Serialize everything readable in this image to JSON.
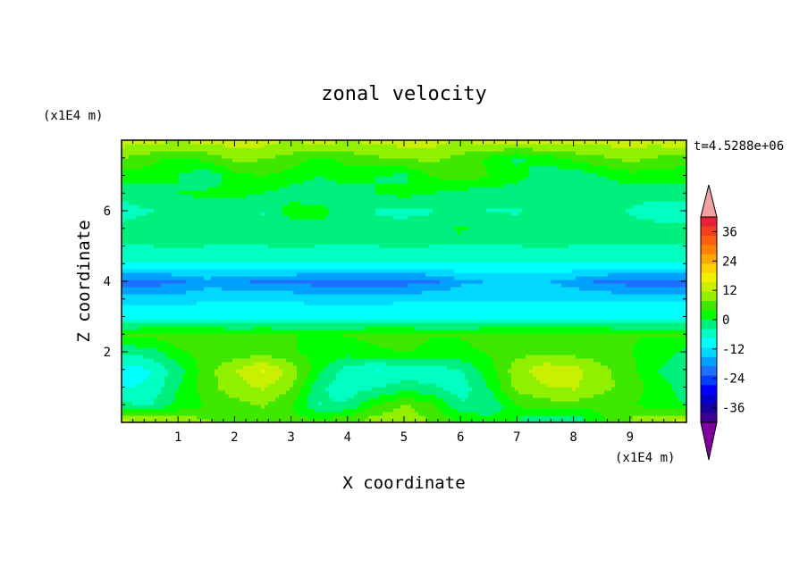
{
  "chart_data": {
    "type": "heatmap",
    "title": "zonal velocity",
    "xlabel": "X coordinate",
    "ylabel": "Z coordinate",
    "x_unit": "(x1E4 m)",
    "y_unit": "(x1E4 m)",
    "time_label": "t=4.5288e+06",
    "xlim": [
      0,
      10
    ],
    "ylim": [
      0,
      8
    ],
    "x_ticks": [
      1,
      2,
      3,
      4,
      5,
      6,
      7,
      8,
      9
    ],
    "y_ticks": [
      2,
      4,
      6
    ],
    "colorbar": {
      "ticks": [
        36,
        24,
        12,
        0,
        -12,
        -24,
        -36
      ],
      "colors": [
        "#e8203a",
        "#f04020",
        "#f86010",
        "#ff8000",
        "#ffa800",
        "#ffd000",
        "#f0f000",
        "#c8f000",
        "#90f000",
        "#40e800",
        "#00ff00",
        "#00f080",
        "#00ffc0",
        "#00ffff",
        "#00d8ff",
        "#00a0ff",
        "#2070ff",
        "#0040ff",
        "#0000ff",
        "#0000c8",
        "#1800a0",
        "#400090"
      ],
      "over_color": "#f4a0a0",
      "under_color": "#8000a0"
    },
    "field": {
      "x": [
        0.0,
        0.5,
        1.0,
        1.5,
        2.0,
        2.5,
        3.0,
        3.5,
        4.0,
        4.5,
        5.0,
        5.5,
        6.0,
        6.5,
        7.0,
        7.5,
        8.0,
        8.5,
        9.0,
        9.5,
        10.0
      ],
      "z": [
        0.1,
        0.5,
        1.0,
        1.5,
        2.0,
        2.5,
        3.0,
        3.5,
        4.0,
        4.5,
        5.0,
        5.5,
        6.0,
        6.5,
        7.0,
        7.5,
        7.9
      ],
      "values": [
        [
          12,
          10,
          9,
          8,
          6,
          6,
          5,
          4,
          6,
          9,
          10,
          7,
          3,
          2,
          0,
          -3,
          -3,
          3,
          8,
          11,
          12
        ],
        [
          -3,
          -4,
          1,
          4,
          6,
          8,
          4,
          -4,
          -3,
          4,
          8,
          5,
          -3,
          -4,
          4,
          6,
          6,
          5,
          4,
          2,
          0
        ],
        [
          -8,
          -7,
          0,
          6,
          10,
          12,
          8,
          -3,
          -6,
          -4,
          -2,
          -3,
          -6,
          0,
          9,
          11,
          12,
          9,
          6,
          2,
          -2
        ],
        [
          -10,
          -8,
          -2,
          6,
          11,
          16,
          10,
          1,
          -6,
          -8,
          -7,
          -6,
          -4,
          2,
          10,
          14,
          13,
          9,
          5,
          0,
          -4
        ],
        [
          -3,
          -2,
          3,
          5,
          5,
          6,
          4,
          3,
          2,
          3,
          4,
          3,
          3,
          4,
          6,
          7,
          6,
          5,
          4,
          2,
          -1
        ],
        [
          4,
          5,
          6,
          6,
          4,
          5,
          4,
          3,
          4,
          5,
          5,
          4,
          4,
          5,
          6,
          6,
          6,
          5,
          4,
          4,
          4
        ],
        [
          -8,
          -8,
          -8,
          -8,
          -8,
          -8,
          -8,
          -8,
          -8,
          -8,
          -8,
          -8,
          -8,
          -8,
          -8,
          -8,
          -8,
          -8,
          -8,
          -8,
          -8
        ],
        [
          -13,
          -13,
          -13,
          -12,
          -12,
          -12,
          -12,
          -13,
          -13,
          -13,
          -12,
          -12,
          -12,
          -12,
          -12,
          -12,
          -12,
          -12,
          -12,
          -12,
          -12
        ],
        [
          -21,
          -21,
          -20,
          -17,
          -18,
          -20,
          -20,
          -21,
          -21,
          -21,
          -21,
          -20,
          -16,
          -15,
          -15,
          -15,
          -17,
          -20,
          -21,
          -21,
          -21
        ],
        [
          -8,
          -8,
          -8,
          -8,
          -8,
          -8,
          -8,
          -8,
          -8,
          -8,
          -8,
          -8,
          -8,
          -8,
          -8,
          -8,
          -8,
          -8,
          -8,
          -8,
          -8
        ],
        [
          -4,
          -4,
          -3,
          -4,
          -4,
          -4,
          -3,
          -4,
          -4,
          -4,
          -3,
          -4,
          -4,
          -4,
          -4,
          -3,
          -4,
          -4,
          -4,
          -4,
          -4
        ],
        [
          -3,
          -2,
          -1,
          0,
          -1,
          -3,
          -3,
          -2,
          -3,
          -3,
          -2,
          -2,
          1,
          -2,
          -3,
          -3,
          -3,
          -2,
          -3,
          -3,
          -3
        ],
        [
          -5,
          -4,
          -3,
          -3,
          -3,
          -4,
          2,
          2,
          -3,
          -4,
          -5,
          -4,
          -3,
          -4,
          -4,
          -3,
          -3,
          -3,
          -4,
          -5,
          -5
        ],
        [
          -3,
          -2,
          0,
          1,
          1,
          0,
          -2,
          -3,
          -2,
          0,
          1,
          0,
          -2,
          -2,
          -3,
          -3,
          -2,
          -2,
          -3,
          -3,
          -3
        ],
        [
          2,
          2,
          0,
          -3,
          2,
          4,
          2,
          0,
          2,
          0,
          -1,
          4,
          6,
          4,
          2,
          -3,
          -3,
          0,
          2,
          2,
          2
        ],
        [
          8,
          5,
          3,
          5,
          9,
          8,
          6,
          3,
          5,
          7,
          8,
          9,
          6,
          3,
          -1,
          2,
          5,
          7,
          9,
          7,
          5
        ],
        [
          12,
          12,
          11,
          12,
          12,
          12,
          11,
          12,
          11,
          12,
          12,
          12,
          11,
          12,
          12,
          12,
          12,
          12,
          12,
          12,
          13
        ]
      ]
    }
  }
}
